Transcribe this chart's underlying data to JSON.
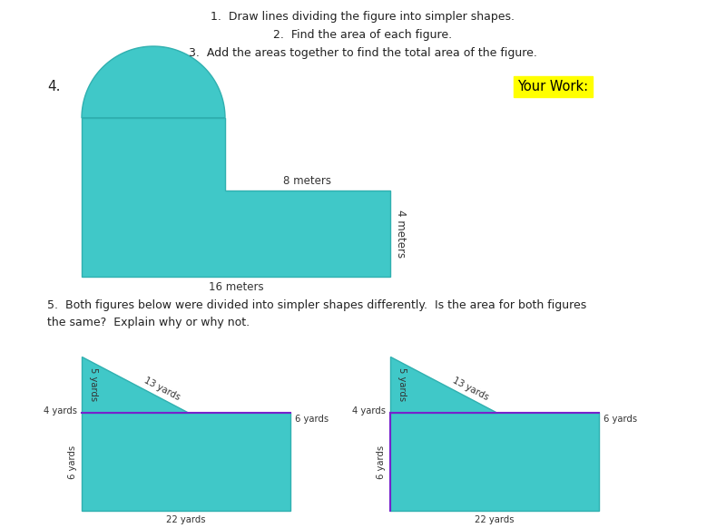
{
  "bg_color": "#ffffff",
  "teal_color": "#40c8c8",
  "teal_edge": "#30b0b0",
  "purple_color": "#7722cc",
  "yellow_highlight": "#ffff00",
  "instructions": [
    "1.  Draw lines dividing the figure into simpler shapes.",
    "2.  Find the area of each figure.",
    "3.  Add the areas together to find the total area of the figure."
  ],
  "label4": "4.",
  "your_work_label": "Your Work:",
  "q5_text_line1": "5.  Both figures below were divided into simpler shapes differently.  Is the area for both figures",
  "q5_text_line2": "the same?  Explain why or why not."
}
